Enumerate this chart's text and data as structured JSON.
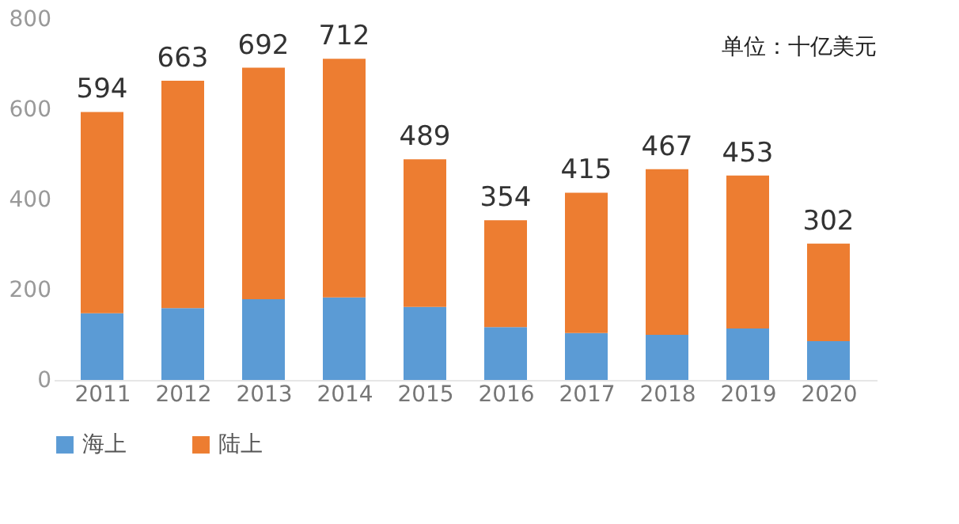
{
  "chart_data": {
    "type": "bar",
    "stacked": true,
    "categories": [
      "2011",
      "2012",
      "2013",
      "2014",
      "2015",
      "2016",
      "2017",
      "2018",
      "2019",
      "2020"
    ],
    "series": [
      {
        "name": "海上",
        "color": "#5b9bd5",
        "values": [
          148,
          159,
          179,
          183,
          162,
          117,
          104,
          100,
          114,
          86
        ]
      },
      {
        "name": "陆上",
        "color": "#ed7d31",
        "values": [
          446,
          504,
          513,
          529,
          327,
          237,
          311,
          367,
          339,
          216
        ]
      }
    ],
    "totals": [
      "594",
      "663",
      "692",
      "712",
      "489",
      "354",
      "415",
      "467",
      "453",
      "302"
    ],
    "ylim": [
      0,
      800
    ],
    "yticks": [
      0,
      200,
      400,
      600,
      800
    ],
    "grid": false,
    "legend": "bottom",
    "annotations": [
      "单位：十亿美元"
    ]
  }
}
